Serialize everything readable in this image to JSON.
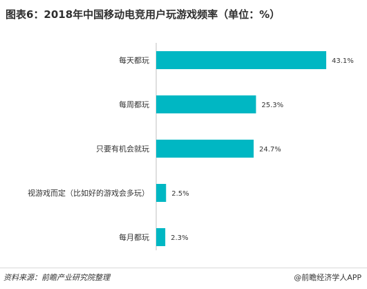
{
  "title": "图表6：2018年中国移动电竞用户玩游戏频率（单位：%）",
  "chart_data": {
    "type": "bar",
    "orientation": "horizontal",
    "categories": [
      "每天都玩",
      "每周都玩",
      "只要有机会就玩",
      "视游戏而定（比如好的游戏会多玩）",
      "每月都玩"
    ],
    "values": [
      43.1,
      25.3,
      24.7,
      2.5,
      2.3
    ],
    "value_labels": [
      "43.1%",
      "25.3%",
      "24.7%",
      "2.5%",
      "2.3%"
    ],
    "xlim": [
      0,
      43.1
    ],
    "bar_color": "#00b7c3",
    "grid": false,
    "legend": "none"
  },
  "footer": {
    "source": "资料来源：前瞻产业研究院整理",
    "credit": "@前瞻经济学人APP"
  }
}
